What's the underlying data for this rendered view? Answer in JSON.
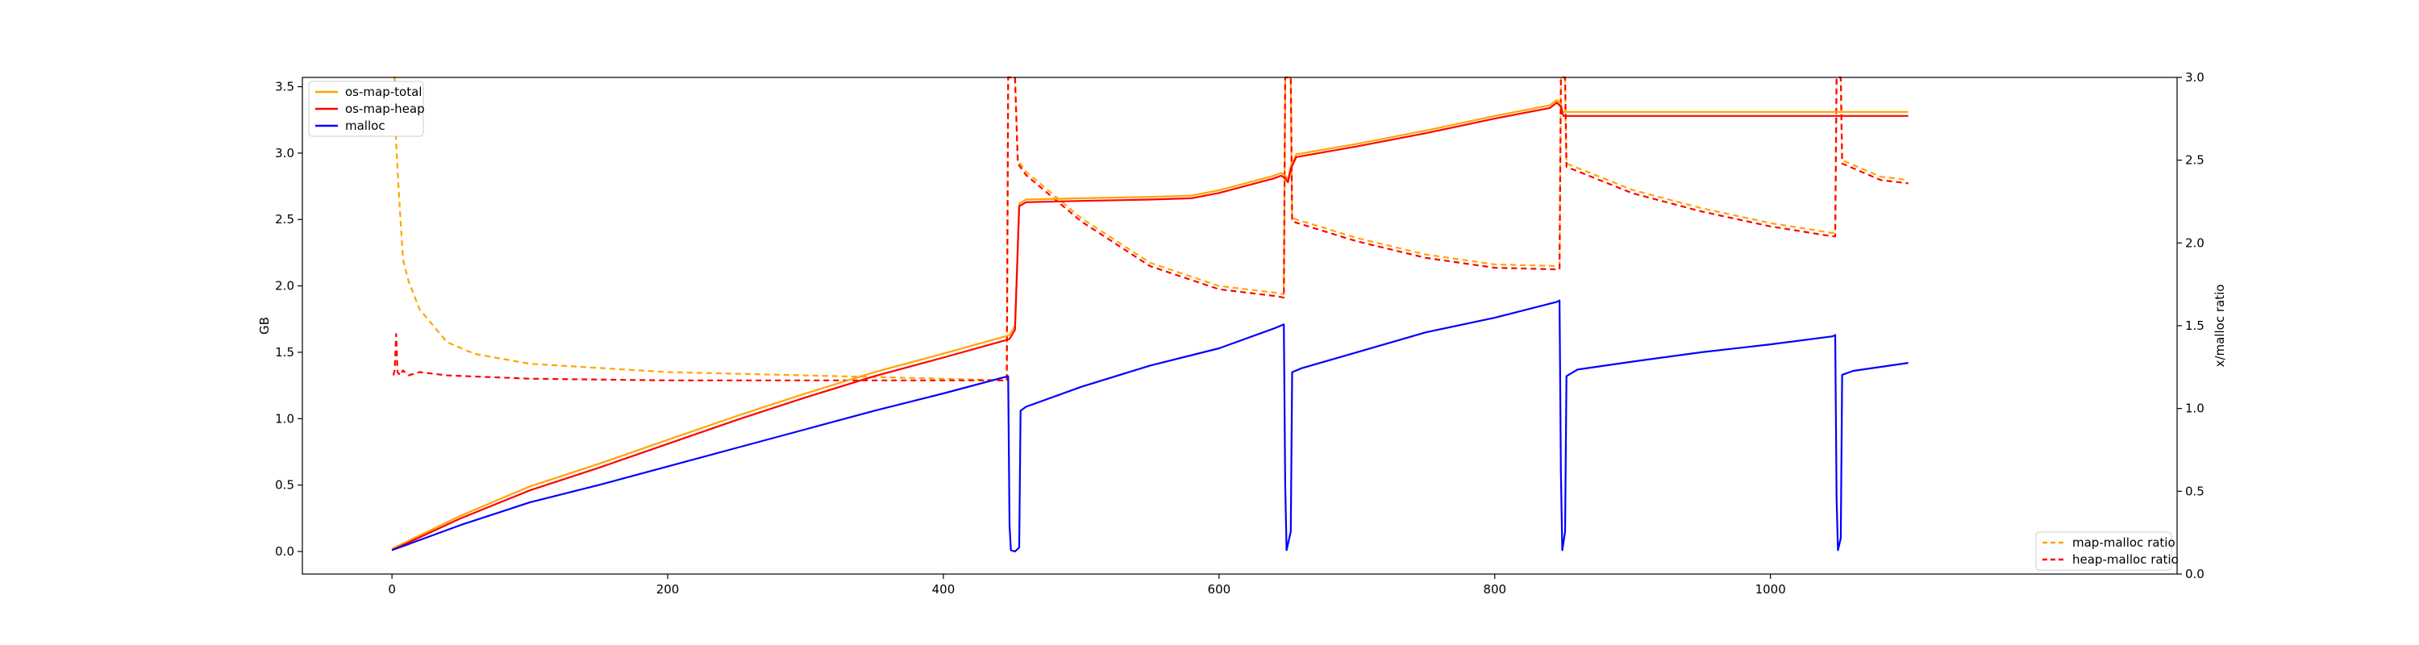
{
  "chart_data": {
    "type": "line",
    "xlabel": "",
    "ylabel_left": "GB",
    "ylabel_right": "x/malloc ratio",
    "xlim": [
      -65,
      1295
    ],
    "ylim_left": [
      -0.17,
      3.57
    ],
    "ylim_right": [
      0,
      3.0
    ],
    "x_ticks": [
      0,
      200,
      400,
      600,
      800,
      1000
    ],
    "y_ticks_left": [
      0.0,
      0.5,
      1.0,
      1.5,
      2.0,
      2.5,
      3.0,
      3.5
    ],
    "y_ticks_right": [
      0.0,
      0.5,
      1.0,
      1.5,
      2.0,
      2.5,
      3.0
    ],
    "grid": false,
    "legend_left": "top-left",
    "legend_right": "bottom-right",
    "series": [
      {
        "name": "os-map-total",
        "axis": "left",
        "color": "#ffa500",
        "style": "solid",
        "points": [
          [
            0,
            0.02
          ],
          [
            50,
            0.27
          ],
          [
            100,
            0.49
          ],
          [
            150,
            0.66
          ],
          [
            200,
            0.84
          ],
          [
            250,
            1.02
          ],
          [
            300,
            1.19
          ],
          [
            350,
            1.35
          ],
          [
            400,
            1.49
          ],
          [
            445,
            1.62
          ],
          [
            448,
            1.63
          ],
          [
            452,
            1.7
          ],
          [
            455,
            2.62
          ],
          [
            460,
            2.65
          ],
          [
            500,
            2.66
          ],
          [
            550,
            2.67
          ],
          [
            580,
            2.68
          ],
          [
            600,
            2.72
          ],
          [
            640,
            2.83
          ],
          [
            645,
            2.85
          ],
          [
            648,
            2.83
          ],
          [
            650,
            2.8
          ],
          [
            652,
            2.9
          ],
          [
            656,
            2.99
          ],
          [
            700,
            3.07
          ],
          [
            750,
            3.17
          ],
          [
            800,
            3.28
          ],
          [
            840,
            3.36
          ],
          [
            845,
            3.4
          ],
          [
            848,
            3.37
          ],
          [
            849,
            3.32
          ],
          [
            850,
            3.31
          ],
          [
            900,
            3.31
          ],
          [
            1000,
            3.31
          ],
          [
            1100,
            3.31
          ]
        ]
      },
      {
        "name": "os-map-heap",
        "axis": "left",
        "color": "#ff0000",
        "style": "solid",
        "points": [
          [
            0,
            0.01
          ],
          [
            50,
            0.25
          ],
          [
            100,
            0.46
          ],
          [
            150,
            0.63
          ],
          [
            200,
            0.81
          ],
          [
            250,
            0.99
          ],
          [
            300,
            1.16
          ],
          [
            350,
            1.32
          ],
          [
            400,
            1.46
          ],
          [
            445,
            1.59
          ],
          [
            448,
            1.6
          ],
          [
            452,
            1.67
          ],
          [
            455,
            2.6
          ],
          [
            460,
            2.63
          ],
          [
            500,
            2.64
          ],
          [
            550,
            2.65
          ],
          [
            580,
            2.66
          ],
          [
            600,
            2.7
          ],
          [
            640,
            2.81
          ],
          [
            645,
            2.83
          ],
          [
            648,
            2.81
          ],
          [
            650,
            2.78
          ],
          [
            652,
            2.88
          ],
          [
            656,
            2.97
          ],
          [
            700,
            3.05
          ],
          [
            750,
            3.15
          ],
          [
            800,
            3.26
          ],
          [
            840,
            3.34
          ],
          [
            845,
            3.38
          ],
          [
            848,
            3.35
          ],
          [
            849,
            3.3
          ],
          [
            850,
            3.28
          ],
          [
            900,
            3.28
          ],
          [
            1000,
            3.28
          ],
          [
            1100,
            3.28
          ]
        ]
      },
      {
        "name": "malloc",
        "axis": "left",
        "color": "#0000ff",
        "style": "solid",
        "points": [
          [
            0,
            0.01
          ],
          [
            50,
            0.2
          ],
          [
            100,
            0.37
          ],
          [
            150,
            0.5
          ],
          [
            200,
            0.64
          ],
          [
            250,
            0.78
          ],
          [
            300,
            0.92
          ],
          [
            350,
            1.06
          ],
          [
            400,
            1.19
          ],
          [
            447,
            1.32
          ],
          [
            448,
            0.2
          ],
          [
            449,
            0.01
          ],
          [
            452,
            0.0
          ],
          [
            455,
            0.03
          ],
          [
            456,
            1.06
          ],
          [
            460,
            1.09
          ],
          [
            500,
            1.24
          ],
          [
            550,
            1.4
          ],
          [
            600,
            1.53
          ],
          [
            640,
            1.68
          ],
          [
            647,
            1.71
          ],
          [
            648,
            0.5
          ],
          [
            649,
            0.01
          ],
          [
            652,
            0.15
          ],
          [
            653,
            1.35
          ],
          [
            660,
            1.38
          ],
          [
            700,
            1.5
          ],
          [
            750,
            1.65
          ],
          [
            800,
            1.76
          ],
          [
            845,
            1.88
          ],
          [
            847,
            1.89
          ],
          [
            848,
            0.6
          ],
          [
            849,
            0.01
          ],
          [
            851,
            0.15
          ],
          [
            852,
            1.32
          ],
          [
            860,
            1.37
          ],
          [
            900,
            1.43
          ],
          [
            950,
            1.5
          ],
          [
            1000,
            1.56
          ],
          [
            1045,
            1.62
          ],
          [
            1047,
            1.63
          ],
          [
            1048,
            0.4
          ],
          [
            1049,
            0.01
          ],
          [
            1051,
            0.1
          ],
          [
            1052,
            1.33
          ],
          [
            1060,
            1.36
          ],
          [
            1100,
            1.42
          ]
        ]
      },
      {
        "name": "map-malloc ratio",
        "axis": "right",
        "color": "#ffa500",
        "style": "dashed",
        "points": [
          [
            1,
            3.3
          ],
          [
            2,
            3.0
          ],
          [
            3,
            2.6
          ],
          [
            5,
            2.3
          ],
          [
            8,
            1.9
          ],
          [
            12,
            1.77
          ],
          [
            20,
            1.6
          ],
          [
            30,
            1.5
          ],
          [
            40,
            1.4
          ],
          [
            60,
            1.33
          ],
          [
            100,
            1.27
          ],
          [
            200,
            1.22
          ],
          [
            300,
            1.2
          ],
          [
            400,
            1.18
          ],
          [
            446,
            1.17
          ],
          [
            447,
            3.0
          ],
          [
            449,
            3.0
          ],
          [
            452,
            3.0
          ],
          [
            454,
            2.5
          ],
          [
            460,
            2.43
          ],
          [
            500,
            2.15
          ],
          [
            550,
            1.88
          ],
          [
            600,
            1.74
          ],
          [
            640,
            1.7
          ],
          [
            647,
            1.69
          ],
          [
            648,
            3.0
          ],
          [
            652,
            3.0
          ],
          [
            653,
            2.15
          ],
          [
            700,
            2.03
          ],
          [
            750,
            1.93
          ],
          [
            800,
            1.87
          ],
          [
            847,
            1.86
          ],
          [
            848,
            3.0
          ],
          [
            851,
            3.0
          ],
          [
            852,
            2.48
          ],
          [
            900,
            2.32
          ],
          [
            950,
            2.21
          ],
          [
            1000,
            2.12
          ],
          [
            1045,
            2.06
          ],
          [
            1047,
            2.06
          ],
          [
            1048,
            3.0
          ],
          [
            1051,
            3.0
          ],
          [
            1052,
            2.5
          ],
          [
            1080,
            2.4
          ],
          [
            1100,
            2.38
          ]
        ]
      },
      {
        "name": "heap-malloc ratio",
        "axis": "right",
        "color": "#ff0000",
        "style": "dashed",
        "points": [
          [
            1,
            1.2
          ],
          [
            2,
            1.23
          ],
          [
            3,
            1.45
          ],
          [
            4,
            1.22
          ],
          [
            6,
            1.2
          ],
          [
            8,
            1.23
          ],
          [
            12,
            1.2
          ],
          [
            20,
            1.22
          ],
          [
            40,
            1.2
          ],
          [
            100,
            1.18
          ],
          [
            200,
            1.17
          ],
          [
            300,
            1.17
          ],
          [
            400,
            1.17
          ],
          [
            446,
            1.17
          ],
          [
            447,
            3.0
          ],
          [
            449,
            3.0
          ],
          [
            452,
            3.0
          ],
          [
            454,
            2.48
          ],
          [
            460,
            2.41
          ],
          [
            500,
            2.13
          ],
          [
            550,
            1.86
          ],
          [
            600,
            1.72
          ],
          [
            640,
            1.68
          ],
          [
            647,
            1.67
          ],
          [
            648,
            3.0
          ],
          [
            652,
            3.0
          ],
          [
            653,
            2.13
          ],
          [
            700,
            2.01
          ],
          [
            750,
            1.91
          ],
          [
            800,
            1.85
          ],
          [
            847,
            1.84
          ],
          [
            848,
            3.0
          ],
          [
            851,
            3.0
          ],
          [
            852,
            2.46
          ],
          [
            900,
            2.3
          ],
          [
            950,
            2.19
          ],
          [
            1000,
            2.1
          ],
          [
            1045,
            2.04
          ],
          [
            1047,
            2.04
          ],
          [
            1048,
            3.0
          ],
          [
            1051,
            3.0
          ],
          [
            1052,
            2.48
          ],
          [
            1080,
            2.38
          ],
          [
            1100,
            2.36
          ]
        ]
      }
    ]
  }
}
